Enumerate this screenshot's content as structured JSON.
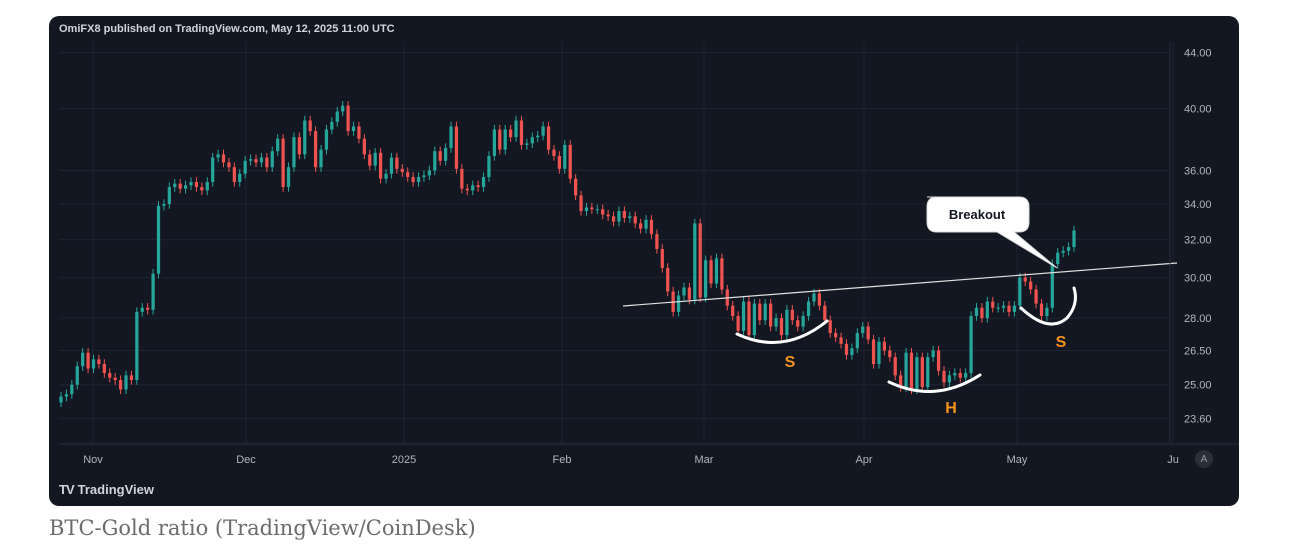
{
  "header": {
    "published": "OmiFX8 published on TradingView.com, May 12, 2025 11:00 UTC"
  },
  "footer": {
    "brand": "TradingView",
    "logo": "TV",
    "auto_button": "A"
  },
  "caption": "BTC-Gold ratio (TradingView/CoinDesk)",
  "colors": {
    "background": "#131722",
    "up": "#26a69a",
    "down": "#ef5350",
    "text": "#d1d4dc",
    "grid": "#1f2330",
    "annotation": "#f7931a"
  },
  "chart_data": {
    "type": "candlestick",
    "title": "",
    "scale": "log",
    "ylim": [
      22.6,
      44.8
    ],
    "y_ticks": [
      "44.00",
      "40.00",
      "36.00",
      "34.00",
      "32.00",
      "30.00",
      "28.00",
      "26.50",
      "25.00",
      "23.60"
    ],
    "x_ticks": [
      "Nov",
      "Dec",
      "2025",
      "Feb",
      "Mar",
      "Apr",
      "May",
      "Ju"
    ],
    "close": [
      24.5,
      24.6,
      25.0,
      25.8,
      26.4,
      25.7,
      26.1,
      25.9,
      25.5,
      25.3,
      25.2,
      24.8,
      25.4,
      25.2,
      28.3,
      28.5,
      28.4,
      30.2,
      33.9,
      34.0,
      35.0,
      35.2,
      34.9,
      35.1,
      35.3,
      35.0,
      34.8,
      35.3,
      36.8,
      37.0,
      36.5,
      36.2,
      35.3,
      35.8,
      36.6,
      36.7,
      36.5,
      36.8,
      36.2,
      37.2,
      38.0,
      35.0,
      36.2,
      38.1,
      37.0,
      39.2,
      38.5,
      36.2,
      37.3,
      38.6,
      39.1,
      39.8,
      40.2,
      38.5,
      38.8,
      38.0,
      37.0,
      36.3,
      37.1,
      35.5,
      35.8,
      36.8,
      36.1,
      35.9,
      35.6,
      35.3,
      35.6,
      35.7,
      36.0,
      37.2,
      36.6,
      37.4,
      38.8,
      36.1,
      34.9,
      34.8,
      35.1,
      35.0,
      35.6,
      36.9,
      38.6,
      37.3,
      38.6,
      38.1,
      39.2,
      37.6,
      37.7,
      38.1,
      38.2,
      38.8,
      37.3,
      36.9,
      36.1,
      37.6,
      35.5,
      34.5,
      33.6,
      33.8,
      33.7,
      33.7,
      33.4,
      33.3,
      33.0,
      33.6,
      33.2,
      33.3,
      32.9,
      32.6,
      33.1,
      32.3,
      31.5,
      30.5,
      29.3,
      28.3,
      29.1,
      29.5,
      28.9,
      32.9,
      29.0,
      30.9,
      29.7,
      31.0,
      29.4,
      28.6,
      28.1,
      27.4,
      28.8,
      27.2,
      28.7,
      27.9,
      28.7,
      27.6,
      28.0,
      27.2,
      28.4,
      27.9,
      27.6,
      28.1,
      28.8,
      29.2,
      28.6,
      27.9,
      27.3,
      27.1,
      26.8,
      26.3,
      26.6,
      27.3,
      27.6,
      27.0,
      25.9,
      26.9,
      26.5,
      26.2,
      25.4,
      24.9,
      26.4,
      24.8,
      26.2,
      24.9,
      26.2,
      26.5,
      25.6,
      25.1,
      25.4,
      25.5,
      25.3,
      25.5,
      28.1,
      28.5,
      28.0,
      28.8,
      28.5,
      28.5,
      28.6,
      28.3,
      28.6,
      30.0,
      29.8,
      29.4,
      28.7,
      28.1,
      28.5,
      30.7,
      31.3,
      31.4,
      31.6,
      32.5
    ]
  }
}
